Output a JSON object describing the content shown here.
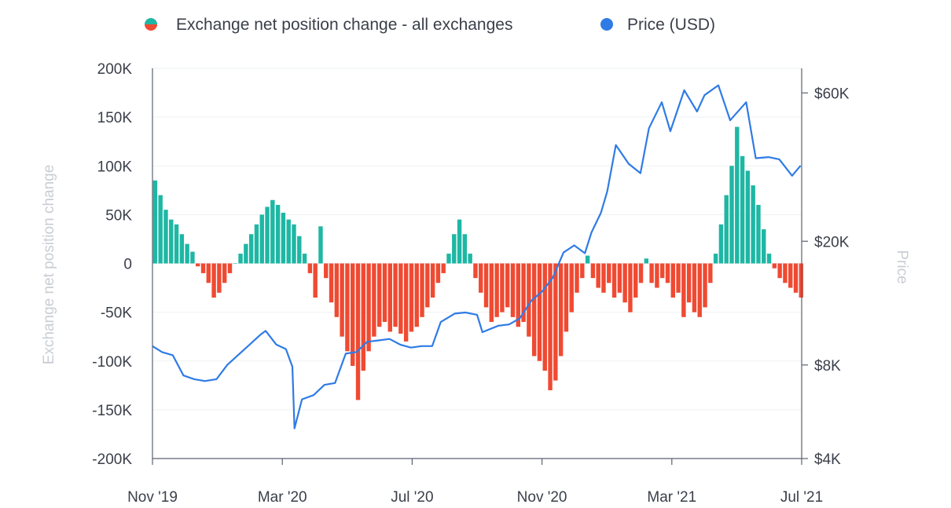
{
  "chart_data": {
    "type": "bar",
    "title": "",
    "legend": {
      "placement": "top",
      "entries": [
        {
          "name": "Exchange net position change - all exchanges",
          "colors": [
            "#1eb7a4",
            "#ef4a32"
          ]
        },
        {
          "name": "Price (USD)",
          "colors": [
            "#2f7be5"
          ]
        }
      ]
    },
    "x_axis": {
      "ticks": [
        "Nov '19",
        "Mar '20",
        "Jul '20",
        "Nov '20",
        "Mar '21",
        "Jul '21"
      ],
      "range": [
        "2019-11-01",
        "2021-07-01"
      ]
    },
    "y_left": {
      "label": "Exchange net position change",
      "ticks": [
        "200K",
        "150K",
        "100K",
        "50K",
        "0",
        "-50K",
        "-100K",
        "-150K",
        "-200K"
      ],
      "range": [
        -200000,
        200000
      ]
    },
    "y_right": {
      "label": "Price",
      "scale": "log",
      "ticks": [
        "$60K",
        "$20K",
        "$8K",
        "$4K"
      ],
      "range": [
        4000,
        72000
      ]
    },
    "grid": true,
    "series": [
      {
        "name": "Exchange net position change - all exchanges",
        "kind": "bar",
        "positive_color": "#1eb7a4",
        "negative_color": "#ef4a32",
        "points": [
          [
            "2019-11-01",
            85000
          ],
          [
            "2019-11-06",
            70000
          ],
          [
            "2019-11-11",
            55000
          ],
          [
            "2019-11-16",
            45000
          ],
          [
            "2019-11-21",
            40000
          ],
          [
            "2019-11-26",
            30000
          ],
          [
            "2019-12-01",
            20000
          ],
          [
            "2019-12-06",
            12000
          ],
          [
            "2019-12-11",
            -3000
          ],
          [
            "2019-12-16",
            -10000
          ],
          [
            "2019-12-21",
            -20000
          ],
          [
            "2019-12-26",
            -35000
          ],
          [
            "2019-12-31",
            -30000
          ],
          [
            "2020-01-05",
            -20000
          ],
          [
            "2020-01-10",
            -10000
          ],
          [
            "2020-01-15",
            0
          ],
          [
            "2020-01-20",
            10000
          ],
          [
            "2020-01-25",
            20000
          ],
          [
            "2020-01-30",
            30000
          ],
          [
            "2020-02-04",
            40000
          ],
          [
            "2020-02-09",
            50000
          ],
          [
            "2020-02-14",
            58000
          ],
          [
            "2020-02-19",
            65000
          ],
          [
            "2020-02-24",
            60000
          ],
          [
            "2020-02-29",
            52000
          ],
          [
            "2020-03-05",
            45000
          ],
          [
            "2020-03-10",
            40000
          ],
          [
            "2020-03-15",
            28000
          ],
          [
            "2020-03-20",
            10000
          ],
          [
            "2020-03-25",
            -10000
          ],
          [
            "2020-03-30",
            -35000
          ],
          [
            "2020-04-04",
            38000
          ],
          [
            "2020-04-09",
            -15000
          ],
          [
            "2020-04-14",
            -40000
          ],
          [
            "2020-04-19",
            -55000
          ],
          [
            "2020-04-24",
            -75000
          ],
          [
            "2020-04-29",
            -90000
          ],
          [
            "2020-05-04",
            -105000
          ],
          [
            "2020-05-09",
            -140000
          ],
          [
            "2020-05-14",
            -110000
          ],
          [
            "2020-05-19",
            -90000
          ],
          [
            "2020-05-24",
            -75000
          ],
          [
            "2020-05-29",
            -65000
          ],
          [
            "2020-06-03",
            -60000
          ],
          [
            "2020-06-08",
            -70000
          ],
          [
            "2020-06-13",
            -65000
          ],
          [
            "2020-06-18",
            -72000
          ],
          [
            "2020-06-23",
            -80000
          ],
          [
            "2020-06-28",
            -70000
          ],
          [
            "2020-07-03",
            -65000
          ],
          [
            "2020-07-08",
            -55000
          ],
          [
            "2020-07-13",
            -45000
          ],
          [
            "2020-07-18",
            -35000
          ],
          [
            "2020-07-23",
            -20000
          ],
          [
            "2020-07-28",
            -10000
          ],
          [
            "2020-08-02",
            10000
          ],
          [
            "2020-08-07",
            30000
          ],
          [
            "2020-08-12",
            45000
          ],
          [
            "2020-08-17",
            30000
          ],
          [
            "2020-08-22",
            10000
          ],
          [
            "2020-08-27",
            -15000
          ],
          [
            "2020-09-01",
            -30000
          ],
          [
            "2020-09-06",
            -45000
          ],
          [
            "2020-09-11",
            -60000
          ],
          [
            "2020-09-16",
            -55000
          ],
          [
            "2020-09-21",
            -50000
          ],
          [
            "2020-09-26",
            -45000
          ],
          [
            "2020-10-01",
            -55000
          ],
          [
            "2020-10-06",
            -65000
          ],
          [
            "2020-10-11",
            -60000
          ],
          [
            "2020-10-16",
            -75000
          ],
          [
            "2020-10-21",
            -95000
          ],
          [
            "2020-10-26",
            -100000
          ],
          [
            "2020-10-31",
            -110000
          ],
          [
            "2020-11-05",
            -130000
          ],
          [
            "2020-11-10",
            -120000
          ],
          [
            "2020-11-15",
            -95000
          ],
          [
            "2020-11-20",
            -70000
          ],
          [
            "2020-11-25",
            -50000
          ],
          [
            "2020-11-30",
            -30000
          ],
          [
            "2020-12-05",
            -15000
          ],
          [
            "2020-12-10",
            8000
          ],
          [
            "2020-12-15",
            -15000
          ],
          [
            "2020-12-20",
            -25000
          ],
          [
            "2020-12-25",
            -30000
          ],
          [
            "2020-12-30",
            -20000
          ],
          [
            "2021-01-04",
            -35000
          ],
          [
            "2021-01-09",
            -30000
          ],
          [
            "2021-01-14",
            -40000
          ],
          [
            "2021-01-19",
            -50000
          ],
          [
            "2021-01-24",
            -35000
          ],
          [
            "2021-01-29",
            -20000
          ],
          [
            "2021-02-03",
            5000
          ],
          [
            "2021-02-08",
            -20000
          ],
          [
            "2021-02-13",
            -25000
          ],
          [
            "2021-02-18",
            -15000
          ],
          [
            "2021-02-23",
            -20000
          ],
          [
            "2021-02-28",
            -35000
          ],
          [
            "2021-03-05",
            -30000
          ],
          [
            "2021-03-10",
            -55000
          ],
          [
            "2021-03-15",
            -40000
          ],
          [
            "2021-03-20",
            -50000
          ],
          [
            "2021-03-25",
            -55000
          ],
          [
            "2021-03-30",
            -45000
          ],
          [
            "2021-04-04",
            -20000
          ],
          [
            "2021-04-09",
            10000
          ],
          [
            "2021-04-14",
            40000
          ],
          [
            "2021-04-19",
            70000
          ],
          [
            "2021-04-24",
            100000
          ],
          [
            "2021-04-29",
            140000
          ],
          [
            "2021-05-04",
            110000
          ],
          [
            "2021-05-09",
            95000
          ],
          [
            "2021-05-14",
            80000
          ],
          [
            "2021-05-19",
            60000
          ],
          [
            "2021-05-24",
            35000
          ],
          [
            "2021-05-29",
            10000
          ],
          [
            "2021-06-03",
            -5000
          ],
          [
            "2021-06-08",
            -15000
          ],
          [
            "2021-06-13",
            -20000
          ],
          [
            "2021-06-18",
            -25000
          ],
          [
            "2021-06-23",
            -30000
          ],
          [
            "2021-06-28",
            -35000
          ]
        ]
      },
      {
        "name": "Price (USD)",
        "kind": "line",
        "color": "#2f7be5",
        "points": [
          [
            "2019-11-01",
            9200
          ],
          [
            "2019-11-10",
            8800
          ],
          [
            "2019-11-20",
            8600
          ],
          [
            "2019-11-30",
            7400
          ],
          [
            "2019-12-10",
            7200
          ],
          [
            "2019-12-20",
            7100
          ],
          [
            "2019-12-31",
            7200
          ],
          [
            "2020-01-10",
            8000
          ],
          [
            "2020-01-20",
            8600
          ],
          [
            "2020-01-31",
            9300
          ],
          [
            "2020-02-10",
            10000
          ],
          [
            "2020-02-15",
            10300
          ],
          [
            "2020-02-25",
            9300
          ],
          [
            "2020-03-05",
            9000
          ],
          [
            "2020-03-11",
            7900
          ],
          [
            "2020-03-13",
            5000
          ],
          [
            "2020-03-20",
            6200
          ],
          [
            "2020-03-31",
            6400
          ],
          [
            "2020-04-10",
            6900
          ],
          [
            "2020-04-20",
            7000
          ],
          [
            "2020-04-30",
            8700
          ],
          [
            "2020-05-10",
            8800
          ],
          [
            "2020-05-20",
            9500
          ],
          [
            "2020-05-31",
            9600
          ],
          [
            "2020-06-10",
            9700
          ],
          [
            "2020-06-20",
            9300
          ],
          [
            "2020-06-30",
            9100
          ],
          [
            "2020-07-10",
            9200
          ],
          [
            "2020-07-20",
            9200
          ],
          [
            "2020-07-28",
            11000
          ],
          [
            "2020-08-10",
            11700
          ],
          [
            "2020-08-20",
            11800
          ],
          [
            "2020-08-31",
            11600
          ],
          [
            "2020-09-05",
            10200
          ],
          [
            "2020-09-20",
            10700
          ],
          [
            "2020-09-30",
            10800
          ],
          [
            "2020-10-10",
            11300
          ],
          [
            "2020-10-21",
            12900
          ],
          [
            "2020-10-31",
            13800
          ],
          [
            "2020-11-10",
            15300
          ],
          [
            "2020-11-20",
            18400
          ],
          [
            "2020-11-30",
            19400
          ],
          [
            "2020-12-10",
            18300
          ],
          [
            "2020-12-16",
            21300
          ],
          [
            "2020-12-25",
            24700
          ],
          [
            "2020-12-31",
            29000
          ],
          [
            "2021-01-08",
            40800
          ],
          [
            "2021-01-20",
            35500
          ],
          [
            "2021-01-31",
            33100
          ],
          [
            "2021-02-08",
            46200
          ],
          [
            "2021-02-20",
            56000
          ],
          [
            "2021-02-28",
            45200
          ],
          [
            "2021-03-13",
            61200
          ],
          [
            "2021-03-25",
            52300
          ],
          [
            "2021-04-01",
            59000
          ],
          [
            "2021-04-14",
            63500
          ],
          [
            "2021-04-25",
            49000
          ],
          [
            "2021-05-10",
            56000
          ],
          [
            "2021-05-19",
            37000
          ],
          [
            "2021-05-31",
            37300
          ],
          [
            "2021-06-10",
            36700
          ],
          [
            "2021-06-22",
            32500
          ],
          [
            "2021-06-30",
            35000
          ]
        ]
      }
    ]
  }
}
